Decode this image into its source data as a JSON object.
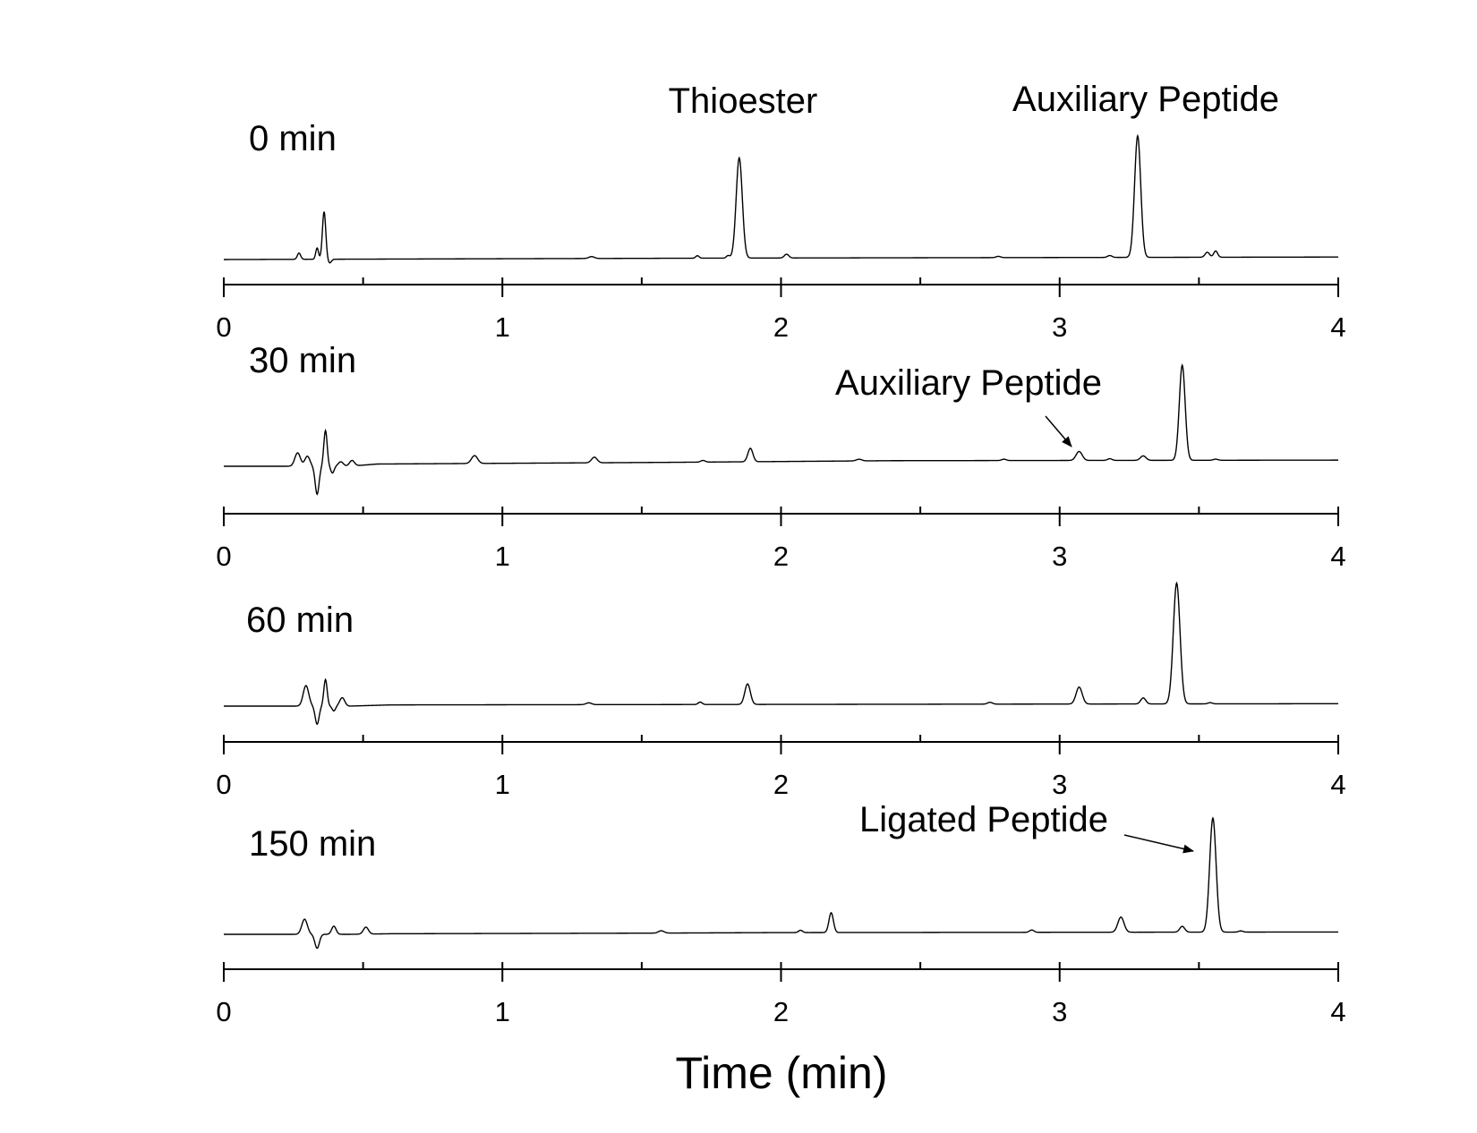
{
  "chart_data": {
    "type": "line",
    "xlabel": "Time (min)",
    "xlim": [
      0,
      4
    ],
    "xticks": [
      0,
      1,
      2,
      3,
      4
    ],
    "minor_ticks": [
      0.5,
      1.5,
      2.5,
      3.5
    ],
    "grid": false,
    "panels": [
      {
        "label": "0 min",
        "baseline": [
          [
            0,
            0.0
          ],
          [
            1.9,
            0.012
          ],
          [
            4,
            0.02
          ]
        ],
        "peaks": [
          {
            "t": 0.27,
            "h": 0.05,
            "w": 0.006
          },
          {
            "t": 0.335,
            "h": 0.09,
            "w": 0.005
          },
          {
            "t": 0.36,
            "h": 0.38,
            "w": 0.006
          },
          {
            "t": 0.38,
            "h": -0.03,
            "w": 0.006
          },
          {
            "t": 1.32,
            "h": 0.015,
            "w": 0.01
          },
          {
            "t": 1.7,
            "h": 0.02,
            "w": 0.006
          },
          {
            "t": 1.81,
            "h": 0.02,
            "w": 0.006
          },
          {
            "t": 1.85,
            "h": 0.8,
            "w": 0.011
          },
          {
            "t": 2.02,
            "h": 0.03,
            "w": 0.008
          },
          {
            "t": 2.78,
            "h": 0.01,
            "w": 0.008
          },
          {
            "t": 3.18,
            "h": 0.015,
            "w": 0.008
          },
          {
            "t": 3.28,
            "h": 0.97,
            "w": 0.011
          },
          {
            "t": 3.53,
            "h": 0.04,
            "w": 0.008
          },
          {
            "t": 3.56,
            "h": 0.05,
            "w": 0.007
          }
        ],
        "annotations": [
          {
            "text": "Thioester",
            "t": 1.85
          },
          {
            "text": "Auxiliary Peptide",
            "t": 3.28
          }
        ]
      },
      {
        "label": "30 min",
        "baseline": [
          [
            0,
            0.0
          ],
          [
            0.45,
            0.0
          ],
          [
            0.55,
            0.02
          ],
          [
            1.6,
            0.035
          ],
          [
            2.4,
            0.05
          ],
          [
            4,
            0.055
          ]
        ],
        "peaks": [
          {
            "t": 0.265,
            "h": 0.12,
            "w": 0.01
          },
          {
            "t": 0.3,
            "h": 0.09,
            "w": 0.009
          },
          {
            "t": 0.335,
            "h": -0.25,
            "w": 0.007
          },
          {
            "t": 0.365,
            "h": 0.32,
            "w": 0.006
          },
          {
            "t": 0.39,
            "h": -0.06,
            "w": 0.006
          },
          {
            "t": 0.42,
            "h": 0.04,
            "w": 0.009
          },
          {
            "t": 0.46,
            "h": 0.05,
            "w": 0.009
          },
          {
            "t": 0.9,
            "h": 0.07,
            "w": 0.011
          },
          {
            "t": 1.33,
            "h": 0.05,
            "w": 0.01
          },
          {
            "t": 1.72,
            "h": 0.015,
            "w": 0.008
          },
          {
            "t": 1.89,
            "h": 0.12,
            "w": 0.009
          },
          {
            "t": 2.28,
            "h": 0.015,
            "w": 0.01
          },
          {
            "t": 2.8,
            "h": 0.012,
            "w": 0.008
          },
          {
            "t": 3.07,
            "h": 0.08,
            "w": 0.011
          },
          {
            "t": 3.18,
            "h": 0.015,
            "w": 0.008
          },
          {
            "t": 3.3,
            "h": 0.04,
            "w": 0.01
          },
          {
            "t": 3.44,
            "h": 0.85,
            "w": 0.0105
          },
          {
            "t": 3.56,
            "h": 0.01,
            "w": 0.008
          }
        ],
        "annotations": [
          {
            "text": "Auxiliary Peptide",
            "t": 3.07
          }
        ]
      },
      {
        "label": "60 min",
        "baseline": [
          [
            0,
            0.0
          ],
          [
            0.45,
            0.0
          ],
          [
            0.6,
            0.01
          ],
          [
            4,
            0.02
          ]
        ],
        "peaks": [
          {
            "t": 0.295,
            "h": 0.17,
            "w": 0.01
          },
          {
            "t": 0.335,
            "h": -0.15,
            "w": 0.007
          },
          {
            "t": 0.365,
            "h": 0.22,
            "w": 0.006
          },
          {
            "t": 0.395,
            "h": -0.04,
            "w": 0.006
          },
          {
            "t": 0.425,
            "h": 0.07,
            "w": 0.009
          },
          {
            "t": 1.31,
            "h": 0.015,
            "w": 0.01
          },
          {
            "t": 1.71,
            "h": 0.02,
            "w": 0.007
          },
          {
            "t": 1.88,
            "h": 0.17,
            "w": 0.01
          },
          {
            "t": 2.75,
            "h": 0.015,
            "w": 0.009
          },
          {
            "t": 3.07,
            "h": 0.14,
            "w": 0.011
          },
          {
            "t": 3.3,
            "h": 0.05,
            "w": 0.009
          },
          {
            "t": 3.42,
            "h": 1.0,
            "w": 0.012
          },
          {
            "t": 3.54,
            "h": 0.01,
            "w": 0.008
          }
        ],
        "annotations": []
      },
      {
        "label": "150 min",
        "baseline": [
          [
            0,
            0.0
          ],
          [
            0.45,
            0.0
          ],
          [
            0.6,
            0.005
          ],
          [
            1.5,
            0.01
          ],
          [
            2.0,
            0.015
          ],
          [
            4,
            0.02
          ]
        ],
        "peaks": [
          {
            "t": 0.29,
            "h": 0.13,
            "w": 0.01
          },
          {
            "t": 0.335,
            "h": -0.12,
            "w": 0.008
          },
          {
            "t": 0.395,
            "h": 0.07,
            "w": 0.008
          },
          {
            "t": 0.51,
            "h": 0.06,
            "w": 0.009
          },
          {
            "t": 1.57,
            "h": 0.02,
            "w": 0.01
          },
          {
            "t": 2.07,
            "h": 0.02,
            "w": 0.007
          },
          {
            "t": 2.18,
            "h": 0.17,
            "w": 0.008
          },
          {
            "t": 2.9,
            "h": 0.02,
            "w": 0.008
          },
          {
            "t": 3.22,
            "h": 0.13,
            "w": 0.011
          },
          {
            "t": 3.44,
            "h": 0.05,
            "w": 0.009
          },
          {
            "t": 3.55,
            "h": 0.98,
            "w": 0.0115
          },
          {
            "t": 3.65,
            "h": 0.01,
            "w": 0.008
          }
        ],
        "annotations": [
          {
            "text": "Ligated Peptide",
            "t": 3.55
          }
        ]
      }
    ]
  }
}
